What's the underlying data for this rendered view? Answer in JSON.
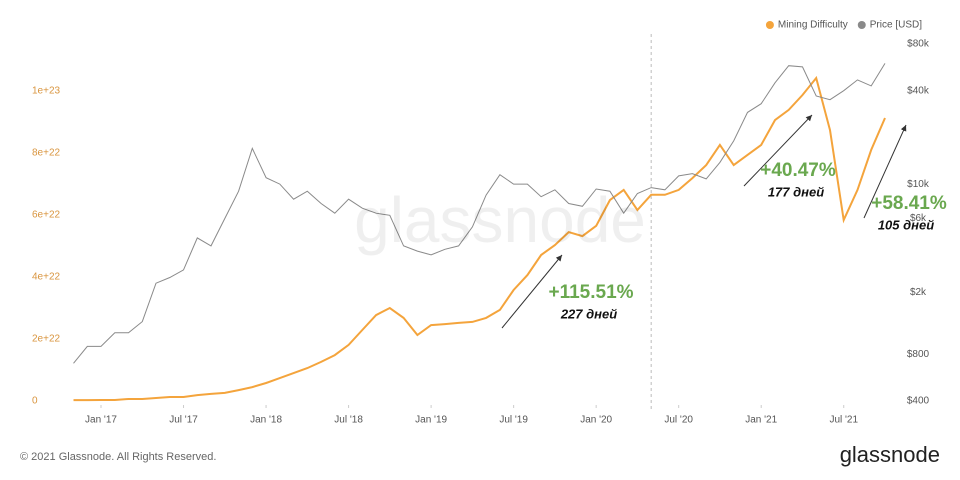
{
  "chart_data": {
    "type": "line",
    "watermark": "glassnode",
    "footer": "© 2021 Glassnode. All Rights Reserved.",
    "logo": "glassnode",
    "x": [
      "2016-11",
      "2016-12",
      "2017-01",
      "2017-02",
      "2017-03",
      "2017-04",
      "2017-05",
      "2017-06",
      "2017-07",
      "2017-08",
      "2017-09",
      "2017-10",
      "2017-11",
      "2017-12",
      "2018-01",
      "2018-02",
      "2018-03",
      "2018-04",
      "2018-05",
      "2018-06",
      "2018-07",
      "2018-08",
      "2018-09",
      "2018-10",
      "2018-11",
      "2018-12",
      "2019-01",
      "2019-02",
      "2019-03",
      "2019-04",
      "2019-05",
      "2019-06",
      "2019-07",
      "2019-08",
      "2019-09",
      "2019-10",
      "2019-11",
      "2019-12",
      "2020-01",
      "2020-02",
      "2020-03",
      "2020-04",
      "2020-05",
      "2020-06",
      "2020-07",
      "2020-08",
      "2020-09",
      "2020-10",
      "2020-11",
      "2020-12",
      "2021-01",
      "2021-02",
      "2021-03",
      "2021-04",
      "2021-05",
      "2021-06",
      "2021-07",
      "2021-08",
      "2021-09",
      "2021-10"
    ],
    "series": [
      {
        "name": "Mining Difficulty",
        "color": "#f4a43c",
        "axis": "y",
        "values": [
          3e+20,
          3e+20,
          3.2e+20,
          3.2e+20,
          6.5e+20,
          6.5e+20,
          9.7e+20,
          1.3e+21,
          1.3e+21,
          1.9e+21,
          2.3e+21,
          2.6e+21,
          3.5e+21,
          4.5e+21,
          5.8e+21,
          7.4e+21,
          9e+21,
          1.06e+22,
          1.26e+22,
          1.48e+22,
          1.81e+22,
          2.29e+22,
          2.77e+22,
          3e+22,
          2.68e+22,
          2.13e+22,
          2.45e+22,
          2.48e+22,
          2.52e+22,
          2.55e+22,
          2.68e+22,
          2.94e+22,
          3.58e+22,
          4.06e+22,
          4.71e+22,
          5.03e+22,
          5.45e+22,
          5.32e+22,
          5.65e+22,
          6.48e+22,
          6.81e+22,
          6.16e+22,
          6.65e+22,
          6.65e+22,
          6.81e+22,
          7.19e+22,
          7.61e+22,
          8.26e+22,
          7.61e+22,
          7.94e+22,
          8.26e+22,
          9.06e+22,
          9.39e+22,
          9.87e+22,
          1.042e+23,
          8.74e+22,
          5.84e+22,
          6.81e+22,
          8.1e+22,
          9.13e+22
        ]
      },
      {
        "name": "Price [USD]",
        "color": "#8a8a8a",
        "axis": "y2",
        "values": [
          700,
          900,
          900,
          1100,
          1100,
          1300,
          2300,
          2500,
          2800,
          4500,
          4000,
          6000,
          9000,
          17000,
          11000,
          10000,
          8000,
          9000,
          7500,
          6500,
          8000,
          7000,
          6500,
          6300,
          4000,
          3700,
          3500,
          3800,
          4000,
          5300,
          8500,
          11500,
          10000,
          10000,
          8300,
          9200,
          7500,
          7200,
          9300,
          9000,
          6500,
          8700,
          9500,
          9200,
          11300,
          11700,
          10800,
          13800,
          19000,
          29000,
          33000,
          45000,
          58000,
          57000,
          37000,
          35000,
          40000,
          47000,
          43000,
          60000
        ]
      }
    ],
    "xlim": [
      "2016-11",
      "2021-10"
    ],
    "xticks": [
      {
        "value": "2017-01",
        "label": "Jan '17"
      },
      {
        "value": "2017-07",
        "label": "Jul '17"
      },
      {
        "value": "2018-01",
        "label": "Jan '18"
      },
      {
        "value": "2018-07",
        "label": "Jul '18"
      },
      {
        "value": "2019-01",
        "label": "Jan '19"
      },
      {
        "value": "2019-07",
        "label": "Jul '19"
      },
      {
        "value": "2020-01",
        "label": "Jan '20"
      },
      {
        "value": "2020-07",
        "label": "Jul '20"
      },
      {
        "value": "2021-01",
        "label": "Jan '21"
      },
      {
        "value": "2021-07",
        "label": "Jul '21"
      }
    ],
    "ylim": [
      0,
      1.2e+23
    ],
    "yticks": [
      0,
      {
        "value": 2e+22,
        "label": "2e+22"
      },
      {
        "value": 4e+22,
        "label": "4e+22"
      },
      {
        "value": 6e+22,
        "label": "6e+22"
      },
      {
        "value": 8e+22,
        "label": "8e+22"
      },
      {
        "value": 1e+23,
        "label": "1e+23"
      }
    ],
    "y2lim": [
      400,
      100000
    ],
    "y2_log": true,
    "y2ticks": [
      {
        "value": 400,
        "label": "$400"
      },
      {
        "value": 800,
        "label": "$800"
      },
      {
        "value": 2000,
        "label": "$2k"
      },
      {
        "value": 6000,
        "label": "$6k"
      },
      {
        "value": 10000,
        "label": "$10k"
      },
      {
        "value": 40000,
        "label": "$40k"
      },
      {
        "value": 80000,
        "label": "$80k"
      }
    ],
    "vline": "2020-05",
    "legend": "top-right",
    "annotations": [
      {
        "text": "+115.51%"
      },
      {
        "text": "227 дней"
      },
      {
        "text": "+40.47%"
      },
      {
        "text": "177 дней"
      },
      {
        "text": "+58.41%"
      },
      {
        "text": "105 дней"
      }
    ]
  }
}
